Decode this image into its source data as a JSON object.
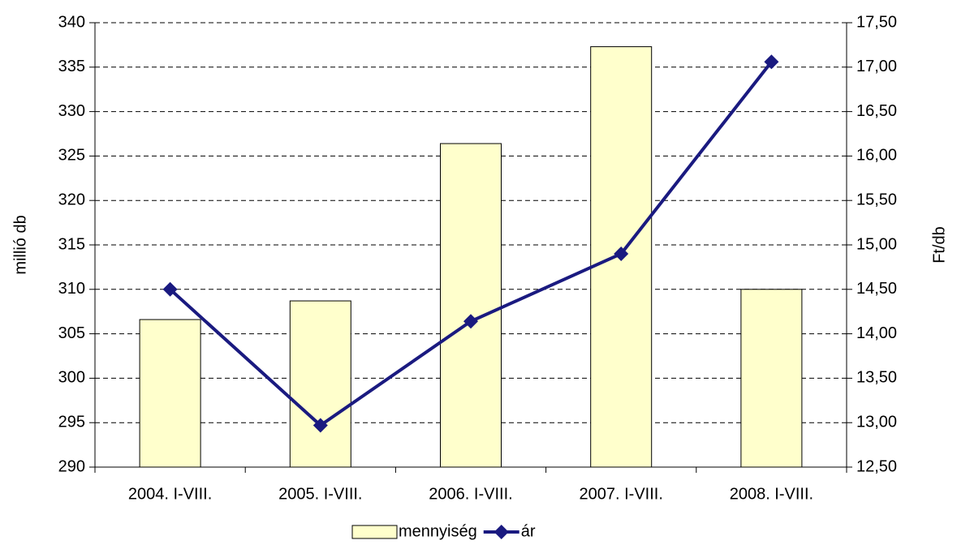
{
  "chart_data": {
    "type": "bar+line",
    "categories": [
      "2004. I-VIII.",
      "2005. I-VIII.",
      "2006. I-VIII.",
      "2007. I-VIII.",
      "2008. I-VIII."
    ],
    "series": [
      {
        "name": "mennyiség",
        "type": "bar",
        "color": "#ffffcc",
        "values": [
          306.6,
          308.7,
          326.4,
          337.3,
          310.0
        ]
      },
      {
        "name": "ár",
        "type": "line",
        "axis": "y2",
        "color": "#1a1a80",
        "values": [
          14.5,
          12.97,
          14.14,
          14.9,
          17.06
        ]
      }
    ],
    "y_label": "millió db",
    "y2_label": "Ft/db",
    "ylim": [
      290,
      340
    ],
    "yticks": [
      290,
      295,
      300,
      305,
      310,
      315,
      320,
      325,
      330,
      335,
      340
    ],
    "y2lim": [
      12.5,
      17.5
    ],
    "y2ticks": [
      {
        "value": 12.5,
        "label": "12,50"
      },
      {
        "value": 13,
        "label": "13,00"
      },
      {
        "value": 13.5,
        "label": "13,50"
      },
      {
        "value": 14,
        "label": "14,00"
      },
      {
        "value": 14.5,
        "label": "14,50"
      },
      {
        "value": 15,
        "label": "15,00"
      },
      {
        "value": 15.5,
        "label": "15,50"
      },
      {
        "value": 16,
        "label": "16,00"
      },
      {
        "value": 16.5,
        "label": "16,50"
      },
      {
        "value": 17,
        "label": "17,00"
      },
      {
        "value": 17.5,
        "label": "17,50"
      }
    ],
    "grid": true,
    "legend": "bottom"
  }
}
